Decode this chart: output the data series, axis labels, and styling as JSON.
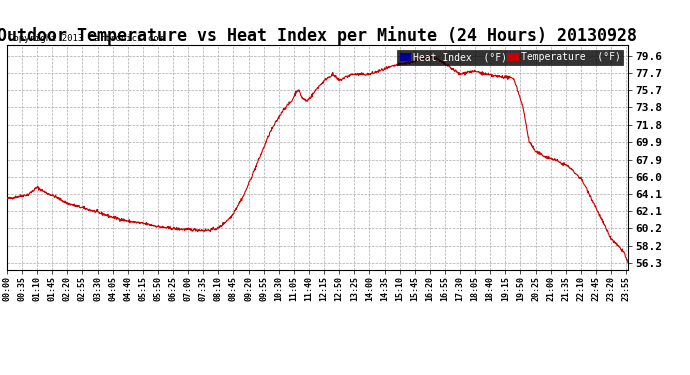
{
  "title": "Outdoor Temperature vs Heat Index per Minute (24 Hours) 20130928",
  "copyright": "Copyright 2013 Cartronics.com",
  "yticks": [
    56.3,
    58.2,
    60.2,
    62.1,
    64.1,
    66.0,
    67.9,
    69.9,
    71.8,
    73.8,
    75.7,
    77.7,
    79.6
  ],
  "ymin": 55.5,
  "ymax": 80.8,
  "background_color": "#ffffff",
  "plot_bg_color": "#ffffff",
  "grid_color": "#aaaaaa",
  "line_color": "#cc0000",
  "title_fontsize": 12,
  "legend_heat_index_bg": "#000099",
  "legend_temp_bg": "#cc0000",
  "legend_text_color": "#ffffff",
  "waypoints": [
    [
      0,
      63.5
    ],
    [
      50,
      64.0
    ],
    [
      70,
      64.8
    ],
    [
      90,
      64.2
    ],
    [
      110,
      63.8
    ],
    [
      140,
      63.0
    ],
    [
      175,
      62.5
    ],
    [
      210,
      62.0
    ],
    [
      240,
      61.5
    ],
    [
      280,
      61.0
    ],
    [
      320,
      60.7
    ],
    [
      360,
      60.3
    ],
    [
      400,
      60.1
    ],
    [
      445,
      60.0
    ],
    [
      455,
      59.95
    ],
    [
      470,
      60.0
    ],
    [
      490,
      60.2
    ],
    [
      520,
      61.5
    ],
    [
      550,
      64.0
    ],
    [
      580,
      67.5
    ],
    [
      610,
      71.0
    ],
    [
      640,
      73.5
    ],
    [
      660,
      74.5
    ],
    [
      670,
      75.5
    ],
    [
      675,
      75.8
    ],
    [
      685,
      74.8
    ],
    [
      695,
      74.5
    ],
    [
      705,
      75.0
    ],
    [
      720,
      76.0
    ],
    [
      740,
      77.0
    ],
    [
      755,
      77.5
    ],
    [
      770,
      76.8
    ],
    [
      785,
      77.2
    ],
    [
      800,
      77.5
    ],
    [
      820,
      77.5
    ],
    [
      840,
      77.5
    ],
    [
      870,
      78.0
    ],
    [
      900,
      78.5
    ],
    [
      930,
      78.8
    ],
    [
      960,
      79.2
    ],
    [
      980,
      79.5
    ],
    [
      995,
      79.3
    ],
    [
      1010,
      78.8
    ],
    [
      1030,
      78.2
    ],
    [
      1050,
      77.5
    ],
    [
      1070,
      77.8
    ],
    [
      1090,
      77.8
    ],
    [
      1110,
      77.5
    ],
    [
      1130,
      77.3
    ],
    [
      1155,
      77.2
    ],
    [
      1175,
      77.0
    ],
    [
      1195,
      74.0
    ],
    [
      1210,
      70.0
    ],
    [
      1225,
      68.8
    ],
    [
      1250,
      68.2
    ],
    [
      1270,
      67.9
    ],
    [
      1285,
      67.5
    ],
    [
      1300,
      67.2
    ],
    [
      1315,
      66.5
    ],
    [
      1325,
      66.0
    ],
    [
      1330,
      65.8
    ],
    [
      1345,
      64.5
    ],
    [
      1360,
      63.0
    ],
    [
      1375,
      61.5
    ],
    [
      1390,
      60.0
    ],
    [
      1400,
      59.0
    ],
    [
      1410,
      58.5
    ],
    [
      1420,
      58.0
    ],
    [
      1430,
      57.5
    ],
    [
      1435,
      56.8
    ],
    [
      1439,
      56.3
    ]
  ]
}
